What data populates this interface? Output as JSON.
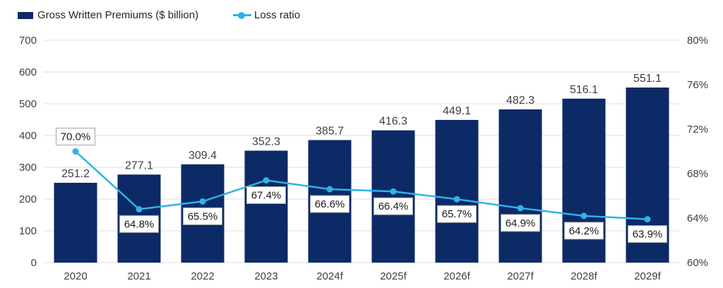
{
  "legend": {
    "items": [
      {
        "label": "Gross Written Premiums ($ billion)",
        "color": "#0b2a66",
        "marker": "square"
      },
      {
        "label": "Loss ratio",
        "color": "#30b2e8",
        "marker": "line-dot"
      }
    ]
  },
  "chart_data": {
    "type": "bar+line combo",
    "categories": [
      "2020",
      "2021",
      "2022",
      "2023",
      "2024f",
      "2025f",
      "2026f",
      "2027f",
      "2028f",
      "2029f"
    ],
    "series": [
      {
        "name": "Gross Written Premiums ($ billion)",
        "type": "bar",
        "axis": "left",
        "color": "#0b2a66",
        "values": [
          251.2,
          277.1,
          309.4,
          352.3,
          385.7,
          416.3,
          449.1,
          482.3,
          516.1,
          551.1
        ],
        "value_labels": [
          "251.2",
          "277.1",
          "309.4",
          "352.3",
          "385.7",
          "416.3",
          "449.1",
          "482.3",
          "516.1",
          "551.1"
        ]
      },
      {
        "name": "Loss ratio",
        "type": "line",
        "axis": "right",
        "color": "#30b2e8",
        "values": [
          70.0,
          64.8,
          65.5,
          67.4,
          66.6,
          66.4,
          65.7,
          64.9,
          64.2,
          63.9
        ],
        "value_labels": [
          "70.0%",
          "64.8%",
          "65.5%",
          "67.4%",
          "66.6%",
          "66.4%",
          "65.7%",
          "64.9%",
          "64.2%",
          "63.9%"
        ],
        "label_side": [
          "above",
          "below",
          "below",
          "below",
          "below",
          "below",
          "below",
          "below",
          "below",
          "below"
        ]
      }
    ],
    "left_axis": {
      "min": 0,
      "max": 700,
      "tick_step": 100,
      "tick_labels": [
        "0",
        "100",
        "200",
        "300",
        "400",
        "500",
        "600",
        "700"
      ]
    },
    "right_axis": {
      "min": 60,
      "max": 80,
      "tick_step": 4,
      "tick_labels": [
        "60%",
        "64%",
        "68%",
        "72%",
        "76%",
        "80%"
      ]
    },
    "grid": true,
    "legend_position": "top-left"
  },
  "styles": {
    "background": "#ffffff",
    "grid_color": "#dcdcdc",
    "tick_text_color": "#404040",
    "bar_label_color": "#404040",
    "x_label_color": "#404040",
    "loss_label_bg": "#ffffff",
    "loss_label_border": "#a6a6a6",
    "loss_label_text": "#1a1a1a"
  }
}
